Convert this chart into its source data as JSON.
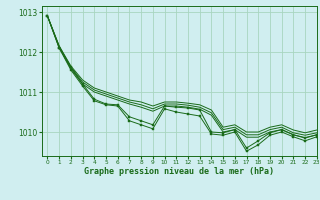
{
  "xlabel": "Graphe pression niveau de la mer (hPa)",
  "ylim": [
    1009.4,
    1013.15
  ],
  "xlim": [
    -0.5,
    23
  ],
  "yticks": [
    1010,
    1011,
    1012,
    1013
  ],
  "xticks": [
    0,
    1,
    2,
    3,
    4,
    5,
    6,
    7,
    8,
    9,
    10,
    11,
    12,
    13,
    14,
    15,
    16,
    17,
    18,
    19,
    20,
    21,
    22,
    23
  ],
  "bg_color": "#d0eef0",
  "grid_color": "#a8d5c0",
  "line_color": "#1a6b1a",
  "figsize": [
    3.2,
    2.0
  ],
  "dpi": 100,
  "smooth_lines": [
    [
      1012.9,
      1012.15,
      1011.65,
      1011.3,
      1011.1,
      1011.0,
      1010.9,
      1010.8,
      1010.75,
      1010.65,
      1010.75,
      1010.75,
      1010.72,
      1010.68,
      1010.55,
      1010.12,
      1010.18,
      1010.0,
      1010.0,
      1010.12,
      1010.18,
      1010.05,
      1009.98,
      1010.05
    ],
    [
      1012.9,
      1012.15,
      1011.62,
      1011.25,
      1011.05,
      1010.95,
      1010.85,
      1010.75,
      1010.68,
      1010.58,
      1010.7,
      1010.7,
      1010.67,
      1010.62,
      1010.48,
      1010.06,
      1010.12,
      1009.93,
      1009.93,
      1010.06,
      1010.12,
      1009.98,
      1009.92,
      1009.98
    ],
    [
      1012.9,
      1012.12,
      1011.58,
      1011.2,
      1011.0,
      1010.9,
      1010.8,
      1010.7,
      1010.62,
      1010.52,
      1010.65,
      1010.65,
      1010.62,
      1010.57,
      1010.42,
      1010.0,
      1010.06,
      1009.87,
      1009.87,
      1010.0,
      1010.06,
      1009.93,
      1009.86,
      1009.93
    ]
  ],
  "jagged_line": [
    1012.9,
    1012.1,
    1011.62,
    1011.2,
    1010.82,
    1010.7,
    1010.68,
    1010.38,
    1010.28,
    1010.18,
    1010.65,
    1010.62,
    1010.6,
    1010.55,
    1010.0,
    1009.98,
    1010.06,
    1009.6,
    1009.78,
    1009.98,
    1010.06,
    1009.93,
    1009.85,
    1009.93
  ],
  "main_line": [
    1012.9,
    1012.1,
    1011.55,
    1011.15,
    1010.78,
    1010.68,
    1010.65,
    1010.28,
    1010.18,
    1010.08,
    1010.58,
    1010.5,
    1010.45,
    1010.4,
    1009.95,
    1009.92,
    1010.0,
    1009.52,
    1009.68,
    1009.92,
    1010.0,
    1009.88,
    1009.78,
    1009.88
  ]
}
